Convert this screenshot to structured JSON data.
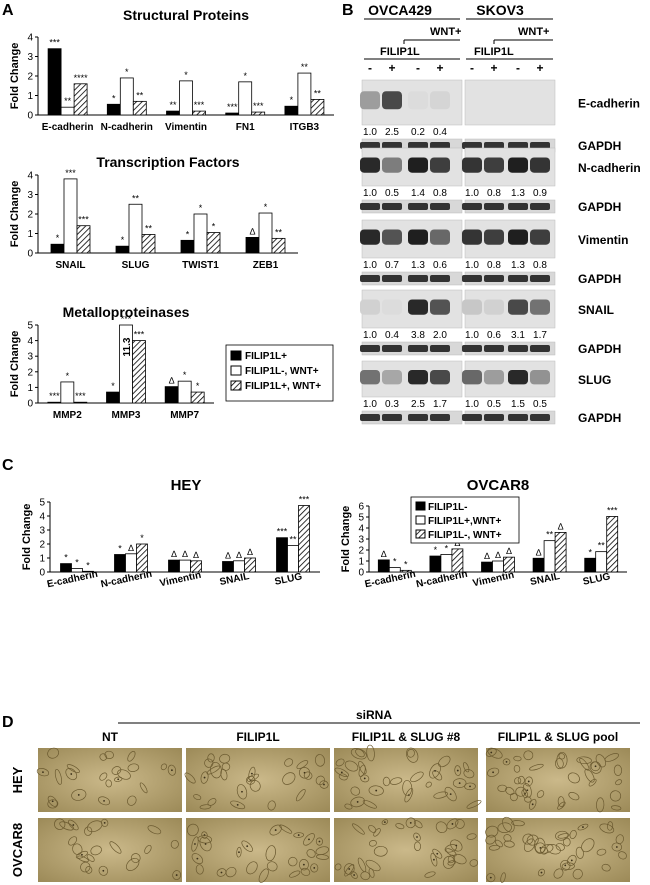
{
  "panels": {
    "a": "A",
    "b": "B",
    "c": "C",
    "d": "D"
  },
  "legend_a": [
    "FILIP1L+",
    "FILIP1L-, WNT+",
    "FILIP1L+, WNT+"
  ],
  "legend_c": [
    "FILIP1L-",
    "FILIP1L+,WNT+",
    "FILIP1L-, WNT+"
  ],
  "chart_data": [
    {
      "type": "bar",
      "title": "Structural Proteins",
      "ylabel": "Fold Change",
      "ylim": [
        0,
        4
      ],
      "categories": [
        "E-cadherin",
        "N-cadherin",
        "Vimentin",
        "FN1",
        "ITGB3"
      ],
      "series": [
        {
          "name": "FILIP1L+",
          "values": [
            3.4,
            0.55,
            0.2,
            0.1,
            0.45
          ]
        },
        {
          "name": "FILIP1L-, WNT+",
          "values": [
            0.4,
            1.9,
            1.75,
            1.7,
            2.15
          ]
        },
        {
          "name": "FILIP1L+, WNT+",
          "values": [
            1.6,
            0.7,
            0.2,
            0.15,
            0.8
          ]
        }
      ],
      "annotations": [
        [
          "***",
          "**",
          "****"
        ],
        [
          "*",
          "*",
          "**"
        ],
        [
          "**",
          "*",
          "***"
        ],
        [
          "***",
          "*",
          "***"
        ],
        [
          "*",
          "**",
          "**"
        ]
      ]
    },
    {
      "type": "bar",
      "title": "Transcription Factors",
      "ylabel": "Fold Change",
      "ylim": [
        0,
        4
      ],
      "categories": [
        "SNAIL",
        "SLUG",
        "TWIST1",
        "ZEB1"
      ],
      "series": [
        {
          "name": "FILIP1L+",
          "values": [
            0.45,
            0.35,
            0.65,
            0.8
          ]
        },
        {
          "name": "FILIP1L-, WNT+",
          "values": [
            3.8,
            2.5,
            2.0,
            2.05
          ]
        },
        {
          "name": "FILIP1L+, WNT+",
          "values": [
            1.4,
            0.95,
            1.05,
            0.75
          ]
        }
      ],
      "annotations": [
        [
          "*",
          "***",
          "***"
        ],
        [
          "*",
          "**",
          "**"
        ],
        [
          "*",
          "*",
          "*"
        ],
        [
          "∆",
          "*",
          "**"
        ]
      ]
    },
    {
      "type": "bar",
      "title": "Metalloproteinases",
      "ylabel": "Fold Change",
      "ylim": [
        0,
        5
      ],
      "categories": [
        "MMP2",
        "MMP3",
        "MMP7"
      ],
      "series": [
        {
          "name": "FILIP1L+",
          "values": [
            0.05,
            0.7,
            1.05
          ]
        },
        {
          "name": "FILIP1L-, WNT+",
          "values": [
            1.35,
            5,
            1.4
          ]
        },
        {
          "name": "FILIP1L+, WNT+",
          "values": [
            0.05,
            4.0,
            0.7
          ]
        }
      ],
      "annotations": [
        [
          "***",
          "*",
          "***"
        ],
        [
          "*",
          "***",
          "***"
        ],
        [
          "∆",
          "*",
          "*"
        ]
      ],
      "bar_labels": [
        "",
        "11.3",
        ""
      ]
    },
    {
      "type": "bar",
      "title": "HEY",
      "ylabel": "Fold Change",
      "ylim": [
        0,
        5
      ],
      "categories": [
        "E-cadherin",
        "N-cadherin",
        "Vimentin",
        "SNAIL",
        "SLUG"
      ],
      "series": [
        {
          "name": "FILIP1L-",
          "values": [
            0.6,
            1.25,
            0.85,
            0.75,
            2.45
          ]
        },
        {
          "name": "FILIP1L+,WNT+",
          "values": [
            0.25,
            1.3,
            0.85,
            0.8,
            1.9
          ]
        },
        {
          "name": "FILIP1L-, WNT+",
          "values": [
            0.05,
            2.0,
            0.8,
            1.0,
            4.75
          ]
        }
      ],
      "annotations": [
        [
          "*",
          "*",
          "*"
        ],
        [
          "*",
          "∆",
          "*"
        ],
        [
          "∆",
          "∆",
          "∆"
        ],
        [
          "∆",
          "∆",
          "∆"
        ],
        [
          "***",
          "**",
          "***"
        ]
      ]
    },
    {
      "type": "bar",
      "title": "OVCAR8",
      "ylabel": "Fold Change",
      "ylim": [
        0,
        6
      ],
      "categories": [
        "E-cadherin",
        "N-cadherin",
        "Vimentin",
        "SNAIL",
        "SLUG"
      ],
      "series": [
        {
          "name": "FILIP1L-",
          "values": [
            1.1,
            1.45,
            0.9,
            1.25,
            1.25
          ]
        },
        {
          "name": "FILIP1L+,WNT+",
          "values": [
            0.4,
            1.6,
            1.0,
            2.85,
            1.85
          ]
        },
        {
          "name": "FILIP1L-, WNT+",
          "values": [
            0.15,
            2.1,
            1.35,
            3.6,
            5.05
          ]
        }
      ],
      "annotations": [
        [
          "∆",
          "*",
          "*"
        ],
        [
          "*",
          "*",
          "∆"
        ],
        [
          "∆",
          "∆",
          "∆"
        ],
        [
          "∆",
          "**",
          "∆"
        ],
        [
          "*",
          "**",
          "***"
        ]
      ]
    }
  ],
  "blot": {
    "cells": [
      "OVCA429",
      "SKOV3"
    ],
    "wnt_label": "WNT+",
    "filip_label": "FILIP1L",
    "signs": [
      "-",
      "+",
      "-",
      "+"
    ],
    "proteins": [
      {
        "name": "E-cadherin",
        "ovca": [
          "1.0",
          "2.5",
          "0.2",
          "0.4"
        ],
        "skov": []
      },
      {
        "name": "N-cadherin",
        "ovca": [
          "1.0",
          "0.5",
          "1.4",
          "0.8"
        ],
        "skov": [
          "1.0",
          "0.8",
          "1.3",
          "0.9"
        ]
      },
      {
        "name": "Vimentin",
        "ovca": [
          "1.0",
          "0.7",
          "1.3",
          "0.6"
        ],
        "skov": [
          "1.0",
          "0.8",
          "1.3",
          "0.8"
        ]
      },
      {
        "name": "SNAIL",
        "ovca": [
          "1.0",
          "0.4",
          "3.8",
          "2.0"
        ],
        "skov": [
          "1.0",
          "0.6",
          "3.1",
          "1.7"
        ]
      },
      {
        "name": "SLUG",
        "ovca": [
          "1.0",
          "0.3",
          "2.5",
          "1.7"
        ],
        "skov": [
          "1.0",
          "0.5",
          "1.5",
          "0.5"
        ]
      }
    ],
    "loading": "GAPDH"
  },
  "micro": {
    "header": "siRNA",
    "cols": [
      "NT",
      "FILIP1L",
      "FILIP1L & SLUG #8",
      "FILIP1L & SLUG pool"
    ],
    "rows": [
      "HEY",
      "OVCAR8"
    ]
  }
}
